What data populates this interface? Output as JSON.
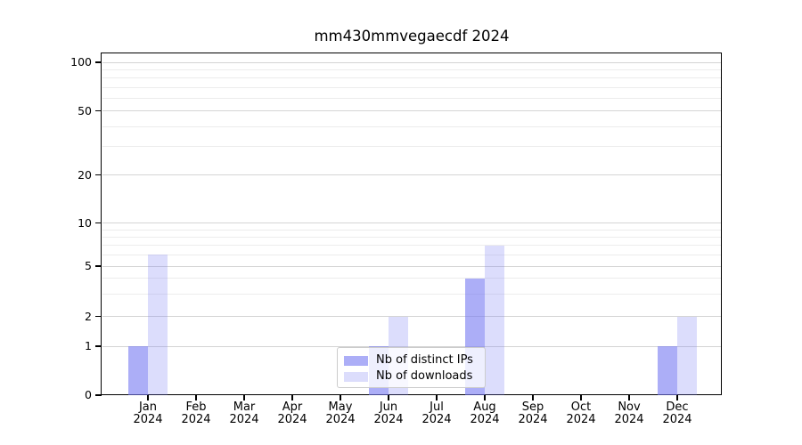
{
  "title": "mm430mmvegaecdf 2024",
  "chart_data": {
    "type": "bar",
    "title": "mm430mmvegaecdf 2024",
    "categories": [
      "Jan\n2024",
      "Feb\n2024",
      "Mar\n2024",
      "Apr\n2024",
      "May\n2024",
      "Jun\n2024",
      "Jul\n2024",
      "Aug\n2024",
      "Sep\n2024",
      "Oct\n2024",
      "Nov\n2024",
      "Dec\n2024"
    ],
    "series": [
      {
        "name": "Nb of distinct IPs",
        "color": "rgba(116,120,242,0.6)",
        "values": [
          1,
          0,
          0,
          0,
          0,
          1,
          0,
          4,
          0,
          0,
          0,
          1
        ]
      },
      {
        "name": "Nb of downloads",
        "color": "rgba(116,120,242,0.25)",
        "values": [
          6,
          0,
          0,
          0,
          0,
          2,
          0,
          7,
          0,
          0,
          0,
          2
        ]
      }
    ],
    "xlabel": "",
    "ylabel": "",
    "yscale": "symlog",
    "ylim": [
      0,
      114
    ],
    "yticks_major": [
      0,
      1,
      2,
      5,
      10,
      20,
      50,
      100
    ],
    "ytick_labels": [
      "0",
      "1",
      "2",
      "5",
      "10",
      "20",
      "50",
      "100"
    ],
    "yticks_minor": [
      3,
      4,
      6,
      7,
      8,
      9,
      30,
      40,
      60,
      70,
      80,
      90
    ],
    "grid": true,
    "legend_position": "lower center"
  },
  "colors": {
    "bar_distinct_ips": "rgba(116,120,242,0.6)",
    "bar_downloads": "rgba(116,120,242,0.25)",
    "grid_major": "#d4d4d4",
    "grid_minor": "#ececec",
    "spine": "#000000",
    "legend_border": "#cccccc",
    "background": "#ffffff"
  }
}
